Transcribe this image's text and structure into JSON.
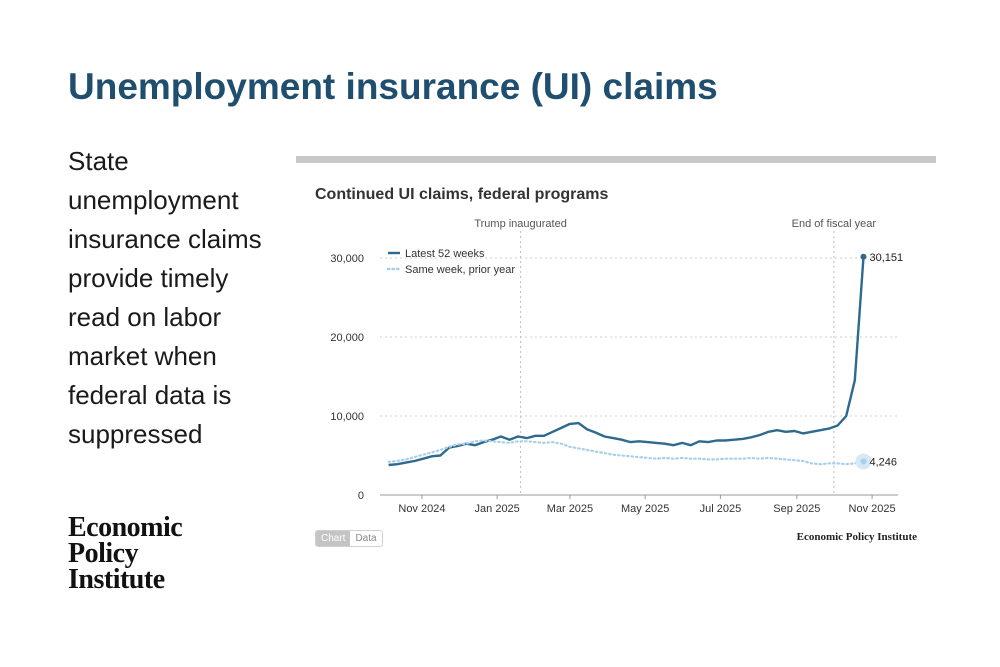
{
  "slide": {
    "title": "Unemployment insurance (UI) claims",
    "body": "State unemployment insurance claims provide timely read on labor market when federal data is suppressed",
    "logo_lines": [
      "Economic",
      "Policy",
      "Institute"
    ]
  },
  "controls": {
    "chart_label": "Chart",
    "data_label": "Data"
  },
  "credit": "Economic Policy Institute",
  "colors": {
    "title": "#1f4e6e",
    "series_latest": "#2e6a8e",
    "series_prior": "#a8d0ea",
    "rule": "#c9c9c9"
  },
  "chart_data": {
    "type": "line",
    "title": "Continued UI claims, federal programs",
    "xlabel": "",
    "ylabel": "",
    "ylim": [
      0,
      30000
    ],
    "yticks": [
      0,
      10000,
      20000,
      30000
    ],
    "ytick_labels": [
      "0",
      "10,000",
      "20,000",
      "30,000"
    ],
    "xlim": [
      "2024-09-28",
      "2025-11-22"
    ],
    "xticks": [
      {
        "date": "2024-11-01",
        "label": "Nov 2024"
      },
      {
        "date": "2025-01-01",
        "label": "Jan 2025"
      },
      {
        "date": "2025-03-01",
        "label": "Mar 2025"
      },
      {
        "date": "2025-05-01",
        "label": "May 2025"
      },
      {
        "date": "2025-07-01",
        "label": "Jul 2025"
      },
      {
        "date": "2025-09-01",
        "label": "Sep 2025"
      },
      {
        "date": "2025-11-01",
        "label": "Nov 2025"
      }
    ],
    "annotations": [
      {
        "date": "2025-01-20",
        "label": "Trump inaugurated"
      },
      {
        "date": "2025-10-01",
        "label": "End of fiscal year"
      }
    ],
    "legend_placement": "top-left",
    "grid": "horizontal dotted",
    "x": [
      "2024-10-05",
      "2024-10-12",
      "2024-10-19",
      "2024-10-26",
      "2024-11-02",
      "2024-11-09",
      "2024-11-16",
      "2024-11-23",
      "2024-11-30",
      "2024-12-07",
      "2024-12-14",
      "2024-12-21",
      "2024-12-28",
      "2025-01-04",
      "2025-01-11",
      "2025-01-18",
      "2025-01-25",
      "2025-02-01",
      "2025-02-08",
      "2025-02-15",
      "2025-02-22",
      "2025-03-01",
      "2025-03-08",
      "2025-03-15",
      "2025-03-22",
      "2025-03-29",
      "2025-04-05",
      "2025-04-12",
      "2025-04-19",
      "2025-04-26",
      "2025-05-03",
      "2025-05-10",
      "2025-05-17",
      "2025-05-24",
      "2025-05-31",
      "2025-06-07",
      "2025-06-14",
      "2025-06-21",
      "2025-06-28",
      "2025-07-05",
      "2025-07-12",
      "2025-07-19",
      "2025-07-26",
      "2025-08-02",
      "2025-08-09",
      "2025-08-16",
      "2025-08-23",
      "2025-08-30",
      "2025-09-06",
      "2025-09-13",
      "2025-09-20",
      "2025-09-27",
      "2025-10-04",
      "2025-10-11",
      "2025-10-18",
      "2025-10-25"
    ],
    "series": [
      {
        "name": "Latest 52 weeks",
        "style": "solid",
        "values": [
          3800,
          3900,
          4100,
          4300,
          4600,
          4900,
          5000,
          6000,
          6200,
          6500,
          6300,
          6700,
          7000,
          7400,
          7000,
          7400,
          7200,
          7500,
          7500,
          8000,
          8500,
          9000,
          9100,
          8300,
          7900,
          7400,
          7200,
          7000,
          6700,
          6800,
          6700,
          6600,
          6500,
          6300,
          6600,
          6300,
          6800,
          6700,
          6900,
          6900,
          7000,
          7100,
          7300,
          7600,
          8000,
          8200,
          8000,
          8100,
          7800,
          8000,
          8200,
          8400,
          8800,
          10000,
          14500,
          30151
        ],
        "end_label": "30,151"
      },
      {
        "name": "Same week, prior year",
        "style": "dotted",
        "values": [
          4200,
          4300,
          4500,
          4800,
          5100,
          5400,
          5700,
          6100,
          6400,
          6500,
          6800,
          6900,
          6800,
          6700,
          6600,
          6800,
          6800,
          6700,
          6600,
          6700,
          6500,
          6100,
          5900,
          5700,
          5500,
          5300,
          5100,
          5000,
          4900,
          4800,
          4700,
          4600,
          4700,
          4600,
          4700,
          4600,
          4600,
          4500,
          4500,
          4600,
          4600,
          4600,
          4700,
          4600,
          4700,
          4600,
          4500,
          4400,
          4300,
          4000,
          3900,
          4000,
          4000,
          3900,
          4000,
          4246
        ],
        "end_label": "4,246"
      }
    ]
  }
}
